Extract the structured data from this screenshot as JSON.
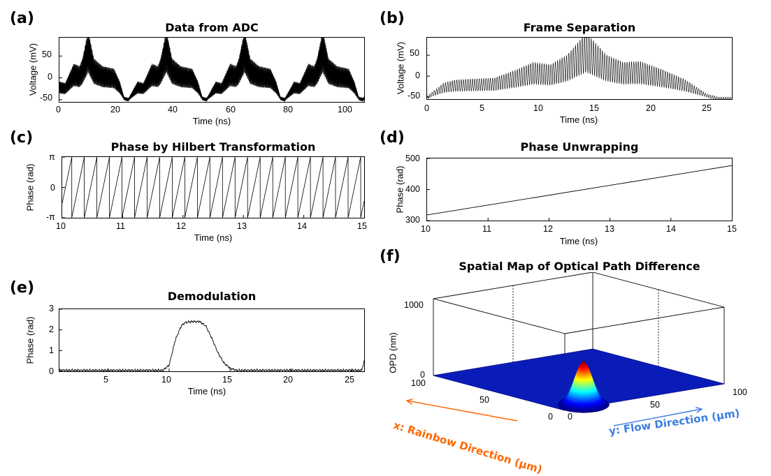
{
  "panels": {
    "a": {
      "letter": "(a)",
      "title": "Data from ADC",
      "xlabel": "Time (ns)",
      "ylabel": "Voltage (mV)",
      "xticks": [
        "0",
        "20",
        "40",
        "60",
        "80",
        "100"
      ],
      "yticks": [
        "50",
        "0",
        "-50"
      ]
    },
    "b": {
      "letter": "(b)",
      "title": "Frame Separation",
      "xlabel": "Time (ns)",
      "ylabel": "Voltage (mV)",
      "xticks": [
        "0",
        "5",
        "10",
        "15",
        "20",
        "25"
      ],
      "yticks": [
        "50",
        "0",
        "-50"
      ]
    },
    "c": {
      "letter": "(c)",
      "title": "Phase by Hilbert Transformation",
      "xlabel": "Time (ns)",
      "ylabel": "Phase (rad)",
      "xticks": [
        "10",
        "11",
        "12",
        "13",
        "14",
        "15"
      ],
      "yticks": [
        "π",
        "0",
        "-π"
      ]
    },
    "d": {
      "letter": "(d)",
      "title": "Phase Unwrapping",
      "xlabel": "Time (ns)",
      "ylabel": "Phase (rad)",
      "xticks": [
        "10",
        "11",
        "12",
        "13",
        "14",
        "15"
      ],
      "yticks": [
        "500",
        "400",
        "300"
      ]
    },
    "e": {
      "letter": "(e)",
      "title": "Demodulation",
      "xlabel": "Time (ns)",
      "ylabel": "Phase (rad)",
      "xticks": [
        "5",
        "10",
        "15",
        "20",
        "25"
      ],
      "yticks": [
        "3",
        "2",
        "1",
        "0"
      ]
    },
    "f": {
      "letter": "(f)",
      "title": "Spatial Map of Optical Path Difference",
      "zlabel": "OPD (nm)",
      "zticks": [
        "1000",
        "0"
      ],
      "xticks": [
        "100",
        "50",
        "0"
      ],
      "yticks": [
        "0",
        "50",
        "100"
      ],
      "xaxis_label": "x: Rainbow Direction (μm)",
      "yaxis_label": "y: Flow Direction (μm)",
      "xaxis_color": "#ff6600",
      "yaxis_color": "#3d7de0"
    }
  },
  "chart_data": [
    {
      "type": "line",
      "title": "Data from ADC",
      "xlabel": "Time (ns)",
      "ylabel": "Voltage (mV)",
      "xlim": [
        0,
        106
      ],
      "ylim": [
        -55,
        92
      ],
      "period_ns": 27.2,
      "frames": 4,
      "fringe_period_ns": 0.2,
      "envelope_x": [
        0,
        2,
        5,
        7,
        8,
        10,
        12,
        15,
        19,
        21,
        22.5,
        24,
        27.2
      ],
      "envelope_y": [
        -15,
        -18,
        20,
        15,
        30,
        85,
        30,
        15,
        10,
        -15,
        -45,
        -48,
        -15
      ],
      "series": [
        {
          "values": []
        }
      ]
    },
    {
      "type": "line",
      "title": "Frame Separation",
      "xlabel": "Time (ns)",
      "ylabel": "Voltage (mV)",
      "xlim": [
        0,
        27.2
      ],
      "ylim": [
        -55,
        92
      ],
      "fringe_period_ns": 0.2,
      "envelope_x": [
        0,
        0.5,
        1.5,
        2.5,
        4,
        6,
        8,
        9.5,
        11,
        12.5,
        14.2,
        16,
        17.5,
        19,
        21,
        23,
        25,
        26,
        27.2
      ],
      "envelope_y": [
        -50,
        -40,
        -22,
        -16,
        -14,
        -12,
        5,
        20,
        15,
        35,
        80,
        35,
        20,
        22,
        5,
        -15,
        -45,
        -52,
        -52
      ]
    },
    {
      "type": "line",
      "title": "Phase by Hilbert Transformation",
      "xlabel": "Time (ns)",
      "ylabel": "Phase (rad)",
      "xlim": [
        10,
        15
      ],
      "ylim": [
        -3.1416,
        3.1416
      ],
      "wrap_period_ns": 0.208,
      "wrap_start_ns": 9.95
    },
    {
      "type": "line",
      "title": "Phase Unwrapping",
      "xlabel": "Time (ns)",
      "ylabel": "Phase (rad)",
      "xlim": [
        10,
        15
      ],
      "ylim": [
        300,
        500
      ],
      "x": [
        10,
        15
      ],
      "y": [
        318,
        477
      ]
    },
    {
      "type": "line",
      "title": "Demodulation",
      "xlabel": "Time (ns)",
      "ylabel": "Phase (rad)",
      "xlim": [
        1,
        26
      ],
      "ylim": [
        0,
        3
      ],
      "x": [
        1,
        9.5,
        10,
        10.5,
        11,
        11.3,
        11.8,
        12.5,
        13,
        13.5,
        14,
        14.5,
        15,
        15.5,
        25.8,
        26
      ],
      "y": [
        0.05,
        0.05,
        0.3,
        1.5,
        2.2,
        2.35,
        2.4,
        2.4,
        2.2,
        1.6,
        0.9,
        0.4,
        0.15,
        0.05,
        0.05,
        0.5
      ]
    },
    {
      "type": "surface",
      "title": "Spatial Map of Optical Path Difference",
      "zlabel": "OPD (nm)",
      "xlabel": "x: Rainbow Direction (μm)",
      "ylabel": "y: Flow Direction (μm)",
      "xlim": [
        0,
        100
      ],
      "ylim": [
        0,
        100
      ],
      "zlim": [
        0,
        1000
      ],
      "peak": {
        "x": 5,
        "y": 15,
        "z": 560
      }
    }
  ]
}
